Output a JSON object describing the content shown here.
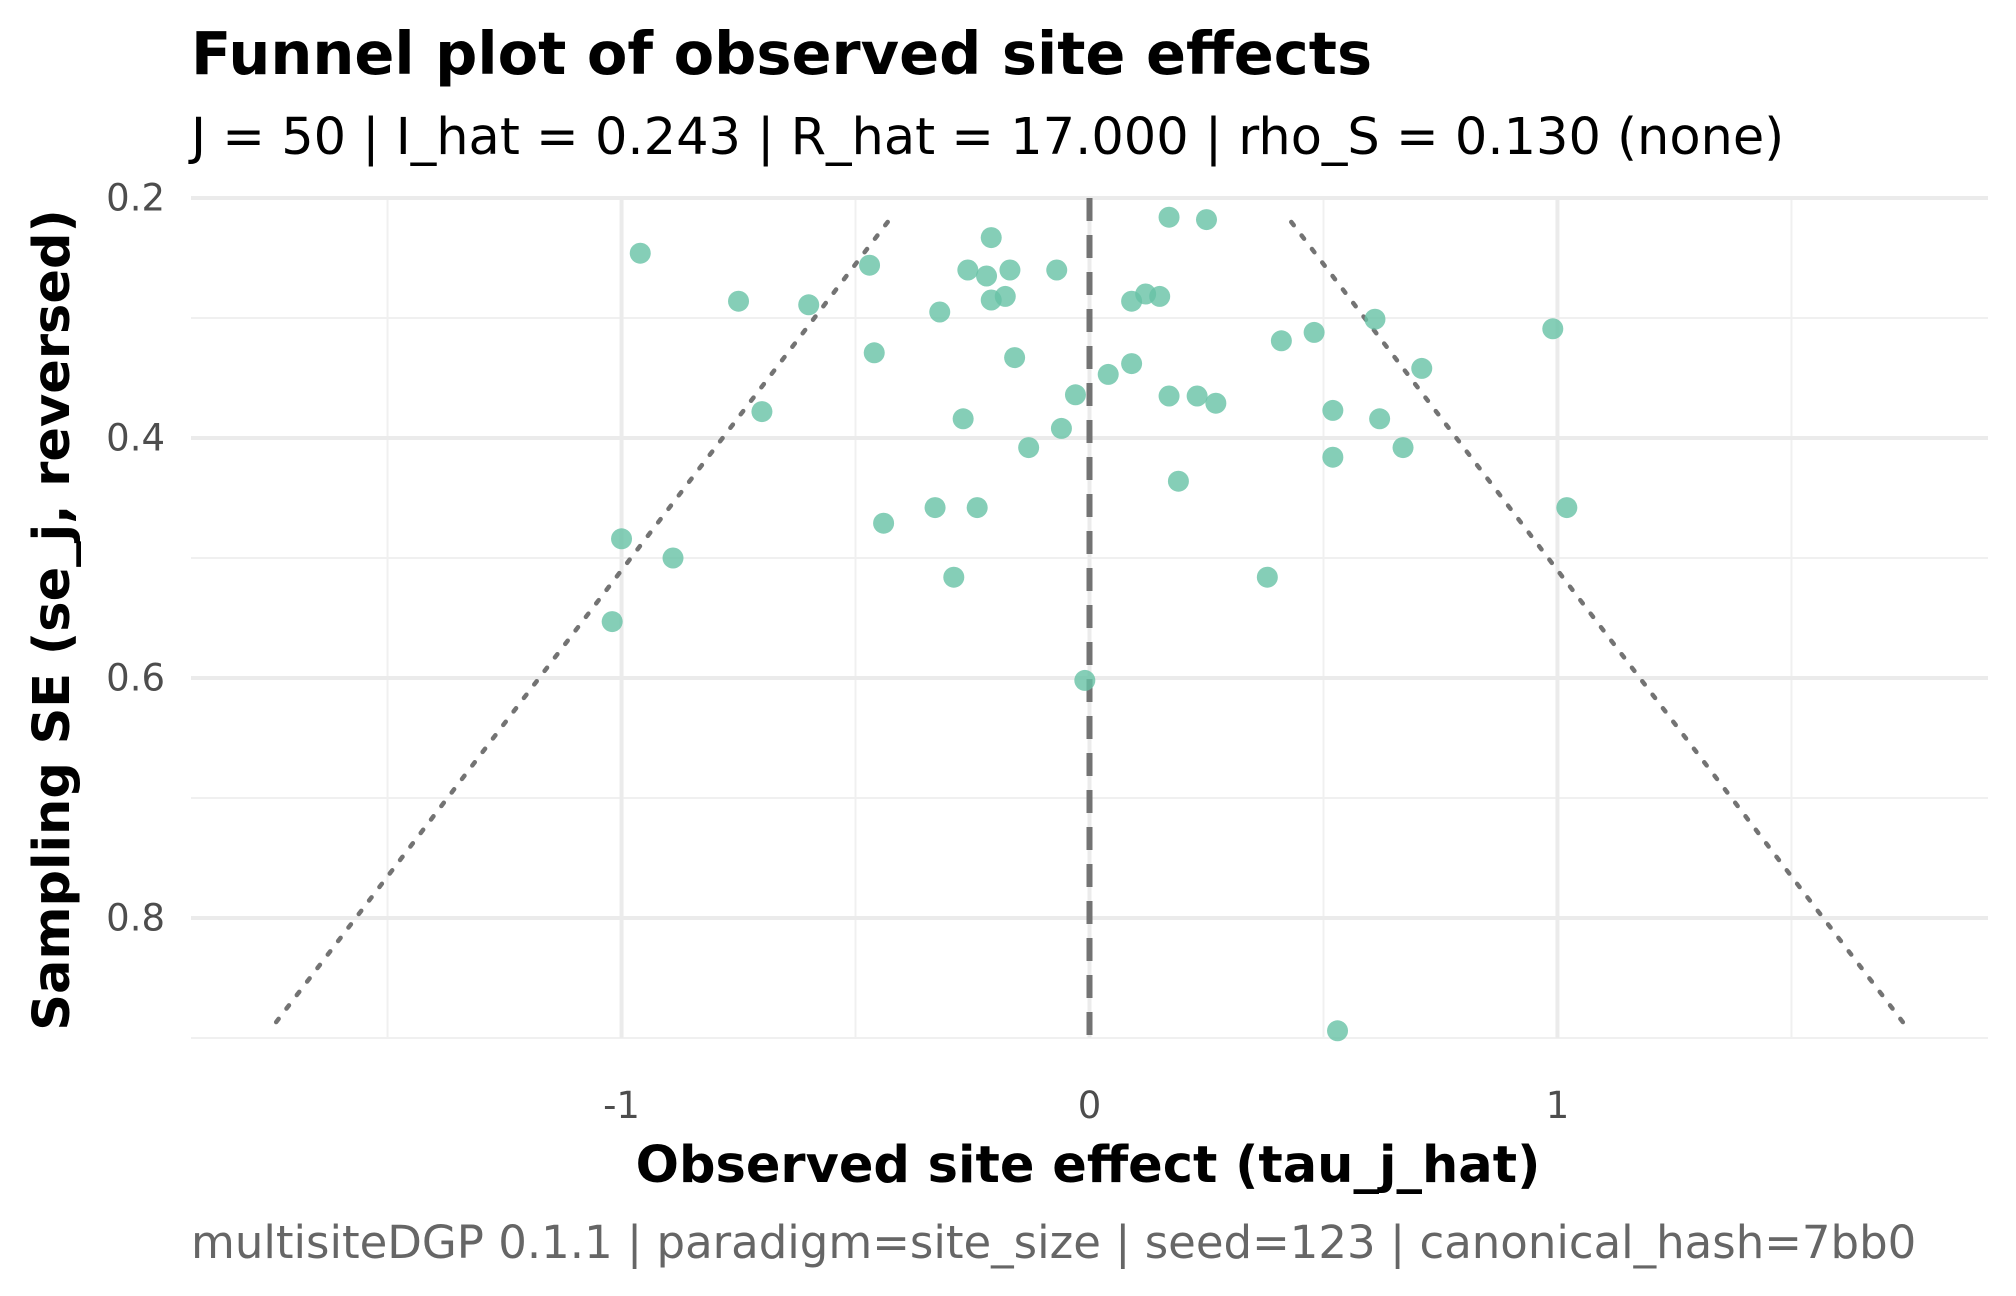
{
  "chart_data": {
    "type": "scatter",
    "title": "Funnel plot of observed site effects",
    "subtitle": "J = 50 | I_hat = 0.243 | R_hat = 17.000 | rho_S = 0.130 (none)",
    "xlabel": "Observed site effect (tau_j_hat)",
    "ylabel": "Sampling SE (se_j, reversed)",
    "caption": "multisiteDGP 0.1.1 | paradigm=site_size | seed=123 | canonical_hash=7bb0",
    "xlim": [
      -1.92,
      1.92
    ],
    "ylim": [
      0.2,
      0.9
    ],
    "y_reversed": true,
    "x_ticks": [
      -1,
      0,
      1
    ],
    "x_tick_labels": [
      "-1",
      "0",
      "1"
    ],
    "y_ticks": [
      0.2,
      0.4,
      0.6,
      0.8
    ],
    "y_tick_labels": [
      "0.2",
      "0.4",
      "0.6",
      "0.8"
    ],
    "grid": true,
    "point_color": "#66c2a5",
    "reference_line": {
      "x": 0,
      "style": "dashed",
      "color": "#737373"
    },
    "funnel": {
      "z": 1.96,
      "style": "dotted",
      "color": "#737373",
      "se_start": 0.22,
      "se_end": 0.89
    },
    "points": [
      {
        "x": -0.96,
        "y": 0.246
      },
      {
        "x": -0.75,
        "y": 0.286
      },
      {
        "x": -0.6,
        "y": 0.289
      },
      {
        "x": -0.47,
        "y": 0.256
      },
      {
        "x": -0.46,
        "y": 0.329
      },
      {
        "x": -0.7,
        "y": 0.378
      },
      {
        "x": -0.44,
        "y": 0.471
      },
      {
        "x": -1.0,
        "y": 0.484
      },
      {
        "x": -0.89,
        "y": 0.5
      },
      {
        "x": -1.02,
        "y": 0.553
      },
      {
        "x": -0.32,
        "y": 0.295
      },
      {
        "x": -0.26,
        "y": 0.26
      },
      {
        "x": -0.22,
        "y": 0.265
      },
      {
        "x": -0.21,
        "y": 0.233
      },
      {
        "x": -0.21,
        "y": 0.285
      },
      {
        "x": -0.18,
        "y": 0.282
      },
      {
        "x": -0.17,
        "y": 0.26
      },
      {
        "x": -0.16,
        "y": 0.333
      },
      {
        "x": -0.07,
        "y": 0.26
      },
      {
        "x": -0.27,
        "y": 0.384
      },
      {
        "x": -0.13,
        "y": 0.408
      },
      {
        "x": -0.06,
        "y": 0.392
      },
      {
        "x": -0.03,
        "y": 0.364
      },
      {
        "x": -0.33,
        "y": 0.458
      },
      {
        "x": -0.24,
        "y": 0.458
      },
      {
        "x": -0.29,
        "y": 0.516
      },
      {
        "x": -0.01,
        "y": 0.602
      },
      {
        "x": 0.17,
        "y": 0.216
      },
      {
        "x": 0.25,
        "y": 0.218
      },
      {
        "x": 0.09,
        "y": 0.286
      },
      {
        "x": 0.12,
        "y": 0.28
      },
      {
        "x": 0.15,
        "y": 0.282
      },
      {
        "x": 0.04,
        "y": 0.347
      },
      {
        "x": 0.09,
        "y": 0.338
      },
      {
        "x": 0.17,
        "y": 0.365
      },
      {
        "x": 0.23,
        "y": 0.365
      },
      {
        "x": 0.27,
        "y": 0.371
      },
      {
        "x": 0.19,
        "y": 0.436
      },
      {
        "x": 0.38,
        "y": 0.516
      },
      {
        "x": 0.41,
        "y": 0.319
      },
      {
        "x": 0.48,
        "y": 0.312
      },
      {
        "x": 0.61,
        "y": 0.301
      },
      {
        "x": 0.71,
        "y": 0.342
      },
      {
        "x": 0.52,
        "y": 0.377
      },
      {
        "x": 0.62,
        "y": 0.384
      },
      {
        "x": 0.52,
        "y": 0.416
      },
      {
        "x": 0.67,
        "y": 0.408
      },
      {
        "x": 0.99,
        "y": 0.309
      },
      {
        "x": 1.02,
        "y": 0.458
      },
      {
        "x": 0.53,
        "y": 0.894
      }
    ]
  }
}
